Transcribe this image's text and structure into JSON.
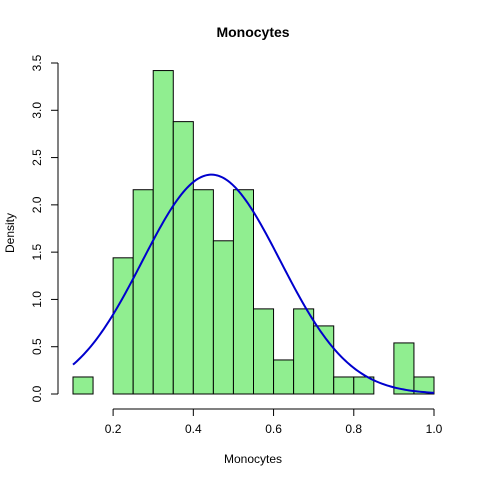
{
  "chart_data": {
    "type": "histogram",
    "title": "Monocytes",
    "xlabel": "Monocytes",
    "ylabel": "Density",
    "xlim": [
      0.1,
      1.0
    ],
    "ylim": [
      0,
      3.5
    ],
    "xticks": [
      0.2,
      0.4,
      0.6,
      0.8,
      1.0
    ],
    "xtick_labels": [
      "0.2",
      "0.4",
      "0.6",
      "0.8",
      "1.0"
    ],
    "yticks": [
      0.0,
      0.5,
      1.0,
      1.5,
      2.0,
      2.5,
      3.0,
      3.5
    ],
    "ytick_labels": [
      "0.0",
      "0.5",
      "1.0",
      "1.5",
      "2.0",
      "2.5",
      "3.0",
      "3.5"
    ],
    "bin_width": 0.05,
    "bins": [
      {
        "x0": 0.1,
        "x1": 0.15,
        "density": 0.18
      },
      {
        "x0": 0.15,
        "x1": 0.2,
        "density": 0.0
      },
      {
        "x0": 0.2,
        "x1": 0.25,
        "density": 1.44
      },
      {
        "x0": 0.25,
        "x1": 0.3,
        "density": 2.16
      },
      {
        "x0": 0.3,
        "x1": 0.35,
        "density": 3.42
      },
      {
        "x0": 0.35,
        "x1": 0.4,
        "density": 2.88
      },
      {
        "x0": 0.4,
        "x1": 0.45,
        "density": 2.16
      },
      {
        "x0": 0.45,
        "x1": 0.5,
        "density": 1.62
      },
      {
        "x0": 0.5,
        "x1": 0.55,
        "density": 2.16
      },
      {
        "x0": 0.55,
        "x1": 0.6,
        "density": 0.9
      },
      {
        "x0": 0.6,
        "x1": 0.65,
        "density": 0.36
      },
      {
        "x0": 0.65,
        "x1": 0.7,
        "density": 0.9
      },
      {
        "x0": 0.7,
        "x1": 0.75,
        "density": 0.72
      },
      {
        "x0": 0.75,
        "x1": 0.8,
        "density": 0.18
      },
      {
        "x0": 0.8,
        "x1": 0.85,
        "density": 0.18
      },
      {
        "x0": 0.85,
        "x1": 0.9,
        "density": 0.0
      },
      {
        "x0": 0.9,
        "x1": 0.95,
        "density": 0.54
      },
      {
        "x0": 0.95,
        "x1": 1.0,
        "density": 0.18
      }
    ],
    "density_curve": {
      "kind": "normal",
      "mean": 0.445,
      "sd": 0.172,
      "x_range": [
        0.1,
        1.0
      ]
    },
    "colors": {
      "bar_fill": "#90EE90",
      "bar_stroke": "#000000",
      "curve": "#0000CD"
    },
    "grid": false,
    "legend": "none"
  }
}
